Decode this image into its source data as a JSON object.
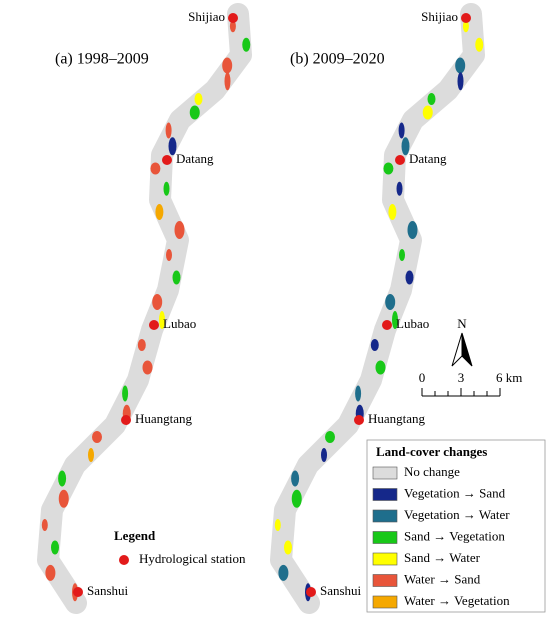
{
  "panels": [
    {
      "title": "(a) 1998–2009",
      "stations": [
        "Shijiao",
        "Datang",
        "Lubao",
        "Huangtang",
        "Sanshui"
      ]
    },
    {
      "title": "(b) 2009–2020",
      "stations": [
        "Shijiao",
        "Datang",
        "Lubao",
        "Huangtang",
        "Sanshui"
      ]
    }
  ],
  "legend": {
    "title": "Legend",
    "items": [
      "Hydrological station"
    ]
  },
  "north": "N",
  "scale_bar": [
    "0",
    "3",
    "6 km"
  ],
  "land_cover_legend": {
    "title": "Land-cover changes",
    "items": [
      {
        "label": "No change",
        "color": "#dcdcdc"
      },
      {
        "label": "Vegetation → Sand",
        "color": "#15288a"
      },
      {
        "label": "Vegetation → Water",
        "color": "#1f6e8c"
      },
      {
        "label": "Sand → Vegetation",
        "color": "#18c818"
      },
      {
        "label": "Sand → Water",
        "color": "#ffff00"
      },
      {
        "label": "Water → Sand",
        "color": "#e8553a"
      },
      {
        "label": "Water → Vegetation",
        "color": "#f5a800"
      }
    ]
  }
}
